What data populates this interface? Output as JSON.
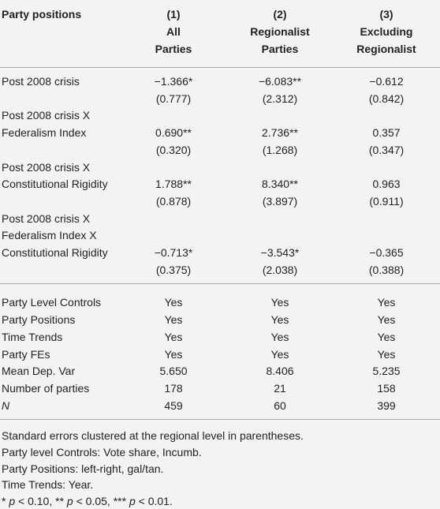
{
  "header": {
    "stub": "Party positions",
    "columns": [
      [
        "(1)",
        "All",
        "Parties"
      ],
      [
        "(2)",
        "Regionalist",
        "Parties"
      ],
      [
        "(3)",
        "Excluding",
        "Regionalist"
      ]
    ]
  },
  "estimates": [
    {
      "label": [
        "Post 2008 crisis"
      ],
      "coef": [
        "−1.366*",
        "−6.083**",
        "−0.612"
      ],
      "se": [
        "(0.777)",
        "(2.312)",
        "(0.842)"
      ]
    },
    {
      "label": [
        "Post 2008 crisis X",
        "Federalism Index"
      ],
      "coef": [
        "0.690**",
        "2.736**",
        "0.357"
      ],
      "se": [
        "(0.320)",
        "(1.268)",
        "(0.347)"
      ]
    },
    {
      "label": [
        "Post 2008 crisis X",
        "Constitutional Rigidity"
      ],
      "coef": [
        "1.788**",
        "8.340**",
        "0.963"
      ],
      "se": [
        "(0.878)",
        "(3.897)",
        "(0.911)"
      ]
    },
    {
      "label": [
        "Post 2008 crisis X",
        "Federalism Index X",
        "Constitutional Rigidity"
      ],
      "coef": [
        "−0.713*",
        "−3.543*",
        "−0.365"
      ],
      "se": [
        "(0.375)",
        "(2.038)",
        "(0.388)"
      ]
    }
  ],
  "stats": [
    {
      "label": "Party Level Controls",
      "values": [
        "Yes",
        "Yes",
        "Yes"
      ]
    },
    {
      "label": "Party Positions",
      "values": [
        "Yes",
        "Yes",
        "Yes"
      ]
    },
    {
      "label": "Time Trends",
      "values": [
        "Yes",
        "Yes",
        "Yes"
      ]
    },
    {
      "label": "Party FEs",
      "values": [
        "Yes",
        "Yes",
        "Yes"
      ]
    },
    {
      "label": "Mean Dep. Var",
      "values": [
        "5.650",
        "8.406",
        "5.235"
      ]
    },
    {
      "label": "Number of parties",
      "values": [
        "178",
        "21",
        "158"
      ]
    },
    {
      "label": "N",
      "values": [
        "459",
        "60",
        "399"
      ]
    }
  ],
  "notes": [
    "Standard errors clustered at the regional level in parentheses.",
    "Party level Controls: Vote share, Incumb.",
    "Party Positions: left-right, gal/tan.",
    "Time Trends: Year.",
    "* p < 0.10, ** p < 0.05, *** p < 0.01."
  ]
}
